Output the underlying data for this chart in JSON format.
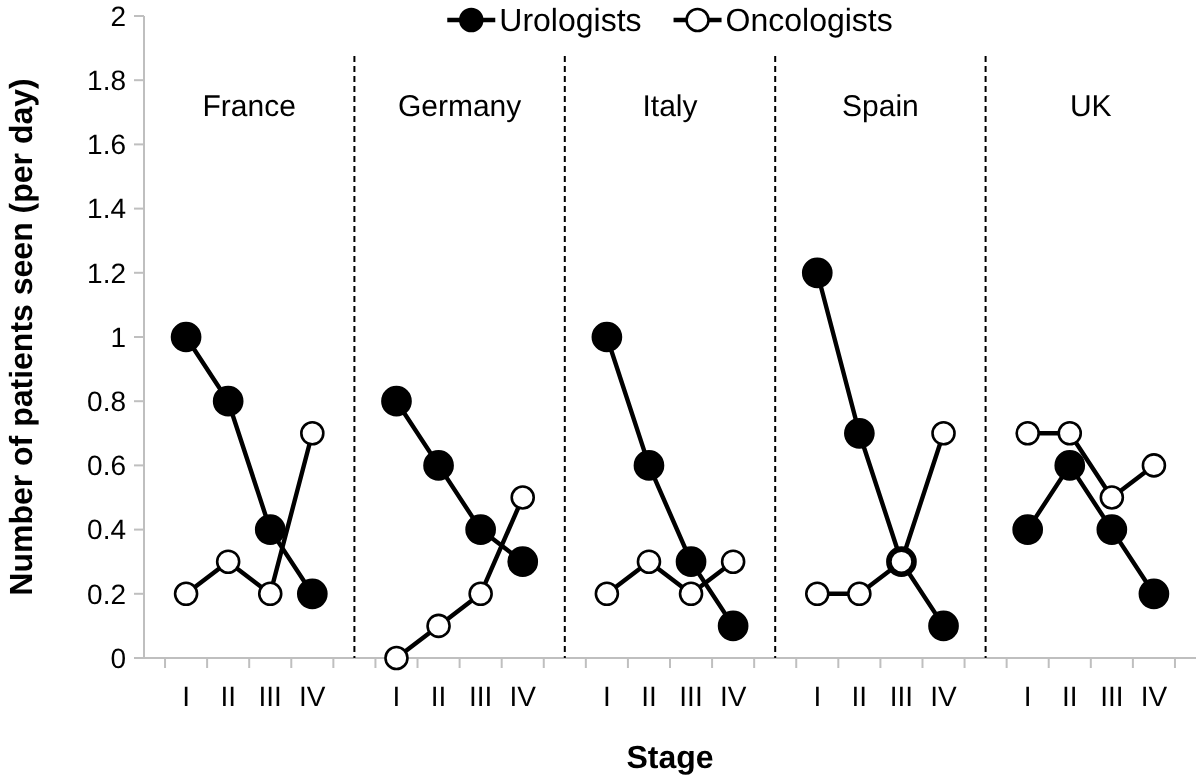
{
  "chart_data": [
    {
      "type": "line",
      "title": "France",
      "ylabel": "Number of patients seen (per day)",
      "categories": [
        "I",
        "II",
        "III",
        "IV"
      ],
      "ylim": [
        0,
        2
      ],
      "yticks": [
        0,
        0.2,
        0.4,
        0.6,
        0.8,
        1,
        1.2,
        1.4,
        1.6,
        1.8,
        2
      ],
      "marker": "circle",
      "legend": "top",
      "series": [
        {
          "name": "Urologists",
          "color": "#000000",
          "values": [
            1.0,
            0.8,
            0.4,
            0.2
          ]
        },
        {
          "name": "Oncologists",
          "color": "#ffffff",
          "values": [
            0.2,
            0.3,
            0.2,
            0.7
          ]
        }
      ]
    },
    {
      "type": "line",
      "title": "Germany",
      "categories": [
        "I",
        "II",
        "III",
        "IV"
      ],
      "ylim": [
        0,
        2
      ],
      "tick_labels": "x",
      "marker": "circle",
      "series": [
        {
          "color": "#000000",
          "values": [
            0.8,
            0.6,
            0.4,
            0.3
          ]
        },
        {
          "color": "#ffffff",
          "values": [
            0.0,
            0.1,
            0.2,
            0.5
          ]
        }
      ]
    },
    {
      "type": "line",
      "title": "Italy",
      "xlabel": "Stage",
      "categories": [
        "I",
        "II",
        "III",
        "IV"
      ],
      "ylim": [
        0,
        2
      ],
      "tick_labels": "x",
      "marker": "circle",
      "series": [
        {
          "color": "#000000",
          "values": [
            1.0,
            0.6,
            0.3,
            0.1
          ]
        },
        {
          "color": "#ffffff",
          "values": [
            0.2,
            0.3,
            0.2,
            0.3
          ]
        }
      ]
    },
    {
      "type": "line",
      "title": "Spain",
      "categories": [
        "I",
        "II",
        "III",
        "IV"
      ],
      "ylim": [
        0,
        2
      ],
      "tick_labels": "x",
      "marker": "circle",
      "series": [
        {
          "color": "#000000",
          "values": [
            1.2,
            0.7,
            0.3,
            0.1
          ]
        },
        {
          "color": "#ffffff",
          "values": [
            0.2,
            0.2,
            0.3,
            0.7
          ]
        }
      ]
    },
    {
      "type": "line",
      "title": "UK",
      "categories": [
        "I",
        "II",
        "III",
        "IV"
      ],
      "ylim": [
        0,
        2
      ],
      "tick_labels": "x",
      "marker": "circle",
      "series": [
        {
          "color": "#000000",
          "values": [
            0.4,
            0.6,
            0.4,
            0.2
          ]
        },
        {
          "color": "#ffffff",
          "values": [
            0.7,
            0.7,
            0.5,
            0.6
          ]
        }
      ]
    }
  ]
}
